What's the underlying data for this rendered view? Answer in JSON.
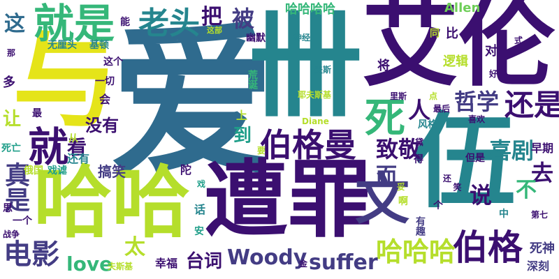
{
  "colors": {
    "background": "#ffffff",
    "palette": [
      "#3b0f70",
      "#433c84",
      "#2f6b8e",
      "#25858e",
      "#1f9e89",
      "#35b779",
      "#6ece58",
      "#b5de2b",
      "#e5e419"
    ]
  },
  "words": [
    {
      "text": "爱",
      "color": "#2f6b8e"
    },
    {
      "text": "艾伦",
      "color": "#3b0f70"
    },
    {
      "text": "与",
      "color": "#e5e419"
    },
    {
      "text": "卌",
      "color": "#25858e"
    },
    {
      "text": "伍",
      "color": "#25858e"
    },
    {
      "text": "遭罪",
      "color": "#3b0f70"
    },
    {
      "text": "哈哈",
      "color": "#b5de2b"
    },
    {
      "text": "文",
      "color": "#433c84"
    },
    {
      "text": "就是",
      "color": "#35b779"
    },
    {
      "text": "老头",
      "color": "#25858e"
    },
    {
      "text": "伯格曼",
      "color": "#3b0f70"
    },
    {
      "text": "伯格",
      "color": "#3b0f70"
    },
    {
      "text": "死",
      "color": "#35b779"
    },
    {
      "text": "就",
      "color": "#3b0f70"
    },
    {
      "text": "哈哈哈",
      "color": "#b5de2b"
    },
    {
      "text": "还是",
      "color": "#3b0f70"
    },
    {
      "text": "哲学",
      "color": "#433c84"
    },
    {
      "text": "人",
      "color": "#3b0f70"
    },
    {
      "text": "致敬",
      "color": "#3b0f70"
    },
    {
      "text": "喜剧",
      "color": "#25858e"
    },
    {
      "text": "去",
      "color": "#3b0f70"
    },
    {
      "text": "说",
      "color": "#3b0f70"
    },
    {
      "text": "电影",
      "color": "#433c84"
    },
    {
      "text": "love",
      "color": "#35b779"
    },
    {
      "text": "Woody",
      "color": "#433c84"
    },
    {
      "text": "suffer",
      "color": "#433c84"
    },
    {
      "text": "台词",
      "color": "#3b0f70"
    },
    {
      "text": "真是",
      "color": "#433c84"
    },
    {
      "text": "被",
      "color": "#433c84"
    },
    {
      "text": "把",
      "color": "#3b0f70"
    },
    {
      "text": "这",
      "color": "#2f6b8e"
    },
    {
      "text": "哈哈哈哈",
      "color": "#35b779"
    },
    {
      "text": "Allen",
      "color": "#6ece58"
    },
    {
      "text": "没有",
      "color": "#3b0f70"
    },
    {
      "text": "看",
      "color": "#3b0f70"
    },
    {
      "text": "让",
      "color": "#b5de2b"
    },
    {
      "text": "到",
      "color": "#1f9e89"
    },
    {
      "text": "而",
      "color": "#433c84"
    },
    {
      "text": "不",
      "color": "#35b779"
    },
    {
      "text": "太",
      "color": "#b5de2b"
    },
    {
      "text": "搞笑",
      "color": "#433c84"
    },
    {
      "text": "幸福",
      "color": "#3b0f70"
    },
    {
      "text": "死神",
      "color": "#433c84"
    },
    {
      "text": "深刻",
      "color": "#433c84"
    },
    {
      "text": "早期",
      "color": "#3b0f70"
    },
    {
      "text": "逻辑",
      "color": "#b5de2b"
    },
    {
      "text": "将",
      "color": "#3b0f70"
    },
    {
      "text": "比",
      "color": "#3b0f70"
    },
    {
      "text": "对",
      "color": "#3b0f70"
    },
    {
      "text": "能",
      "color": "#3b0f70"
    },
    {
      "text": "无厘头",
      "color": "#25858e"
    },
    {
      "text": "基顿",
      "color": "#25858e"
    },
    {
      "text": "这个",
      "color": "#3b0f70"
    },
    {
      "text": "一切",
      "color": "#3b0f70"
    },
    {
      "text": "荒诞",
      "color": "#35b779"
    },
    {
      "text": "幽默",
      "color": "#3b0f70"
    },
    {
      "text": "神经",
      "color": "#25858e"
    },
    {
      "text": "夫斯",
      "color": "#25858e"
    },
    {
      "text": "耶夫斯基",
      "color": "#b5de2b"
    },
    {
      "text": "这部",
      "color": "#b5de2b"
    },
    {
      "text": "那",
      "color": "#3b0f70"
    },
    {
      "text": "多",
      "color": "#3b0f70"
    },
    {
      "text": "最",
      "color": "#3b0f70"
    },
    {
      "text": "会",
      "color": "#3b0f70"
    },
    {
      "text": "最后",
      "color": "#3b0f70"
    },
    {
      "text": "喜欢",
      "color": "#3b0f70"
    },
    {
      "text": "里斯",
      "color": "#3b0f70"
    },
    {
      "text": "风格",
      "color": "#25858e"
    },
    {
      "text": "从",
      "color": "#b5de2b"
    },
    {
      "text": "还有",
      "color": "#25858e"
    },
    {
      "text": "死亡",
      "color": "#1f9e89"
    },
    {
      "text": "俄国",
      "color": "#b5de2b"
    },
    {
      "text": "戏谑",
      "color": "#1f9e89"
    },
    {
      "text": "思",
      "color": "#3b0f70"
    },
    {
      "text": "一个",
      "color": "#3b0f70"
    },
    {
      "text": "战争",
      "color": "#3b0f70"
    },
    {
      "text": "陀",
      "color": "#3b0f70"
    },
    {
      "text": "戏",
      "color": "#1f9e89"
    },
    {
      "text": "话",
      "color": "#25858e"
    },
    {
      "text": "安",
      "color": "#1f9e89"
    },
    {
      "text": "要",
      "color": "#b5de2b"
    },
    {
      "text": "上",
      "color": "#b5de2b"
    },
    {
      "text": "Diane",
      "color": "#b5de2b"
    },
    {
      "text": "有趣",
      "color": "#433c84"
    },
    {
      "text": "啊",
      "color": "#b5de2b"
    },
    {
      "text": "妥",
      "color": "#b5de2b"
    },
    {
      "text": "金",
      "color": "#3b0f70"
    },
    {
      "text": "夫斯基",
      "color": "#b5de2b"
    },
    {
      "text": "个",
      "color": "#3b0f70"
    },
    {
      "text": "中",
      "color": "#25858e"
    },
    {
      "text": "第七",
      "color": "#3b0f70"
    },
    {
      "text": "还",
      "color": "#3b0f70"
    },
    {
      "text": "笑",
      "color": "#3b0f70"
    },
    {
      "text": "但是",
      "color": "#3b0f70"
    },
    {
      "text": "得",
      "color": "#3b0f70"
    },
    {
      "text": "黛",
      "color": "#3b0f70"
    },
    {
      "text": "点",
      "color": "#b5de2b"
    },
    {
      "text": "好",
      "color": "#3b0f70"
    },
    {
      "text": "式",
      "color": "#3b0f70"
    },
    {
      "text": "同",
      "color": "#b5de2b"
    }
  ]
}
